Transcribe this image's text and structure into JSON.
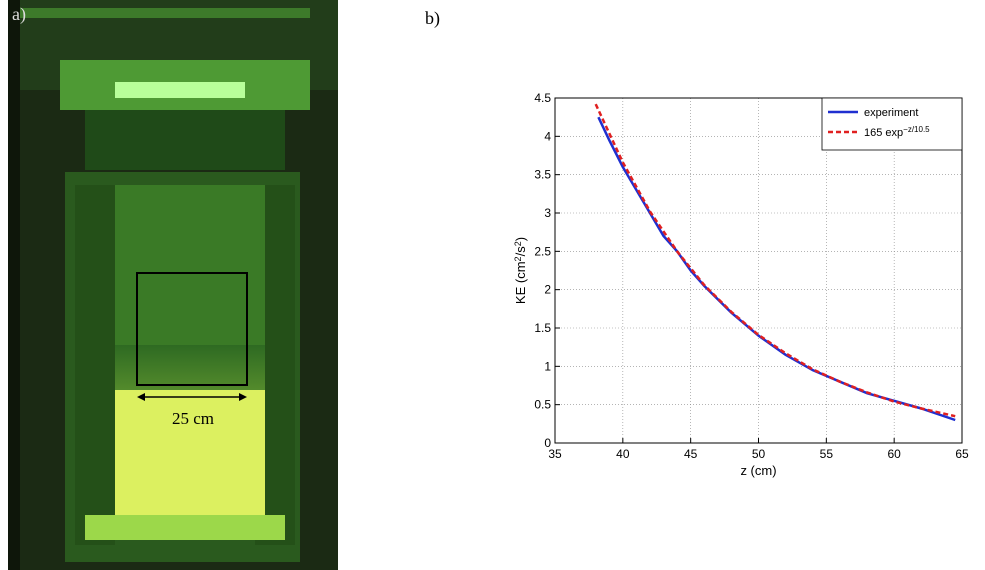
{
  "photo": {
    "panel_label": "a)",
    "scale_label": "25 cm"
  },
  "chart_data": {
    "type": "line",
    "panel_label": "b)",
    "xlabel": "z (cm)",
    "ylabel": [
      "KE (cm",
      "2",
      "/s",
      "2",
      ")"
    ],
    "xlim": [
      35,
      65
    ],
    "xticks": [
      35,
      40,
      45,
      50,
      55,
      60,
      65
    ],
    "ylim": [
      0,
      4.5
    ],
    "yticks": [
      0,
      0.5,
      1,
      1.5,
      2,
      2.5,
      3,
      3.5,
      4,
      4.5
    ],
    "grid": true,
    "legend": "upper right",
    "series": [
      {
        "name": "experiment",
        "color": "#1f2fd0",
        "dash": false,
        "x": [
          38.2,
          39,
          40,
          41,
          42,
          43,
          44,
          45,
          46,
          48,
          50,
          52,
          54,
          56,
          58,
          60,
          62,
          64.5
        ],
        "values": [
          4.25,
          3.95,
          3.6,
          3.3,
          3.0,
          2.7,
          2.5,
          2.25,
          2.05,
          1.7,
          1.4,
          1.15,
          0.95,
          0.8,
          0.65,
          0.55,
          0.45,
          0.3
        ]
      },
      {
        "name": "165 exp",
        "name_sup": "−z/10.5",
        "color": "#e02020",
        "dash": true,
        "x": [
          38,
          40,
          42,
          44,
          46,
          48,
          50,
          52,
          54,
          56,
          58,
          60,
          62,
          64,
          64.5
        ],
        "values": [
          4.42,
          3.66,
          3.02,
          2.5,
          2.06,
          1.71,
          1.41,
          1.17,
          0.96,
          0.8,
          0.66,
          0.54,
          0.45,
          0.37,
          0.35
        ]
      }
    ]
  }
}
